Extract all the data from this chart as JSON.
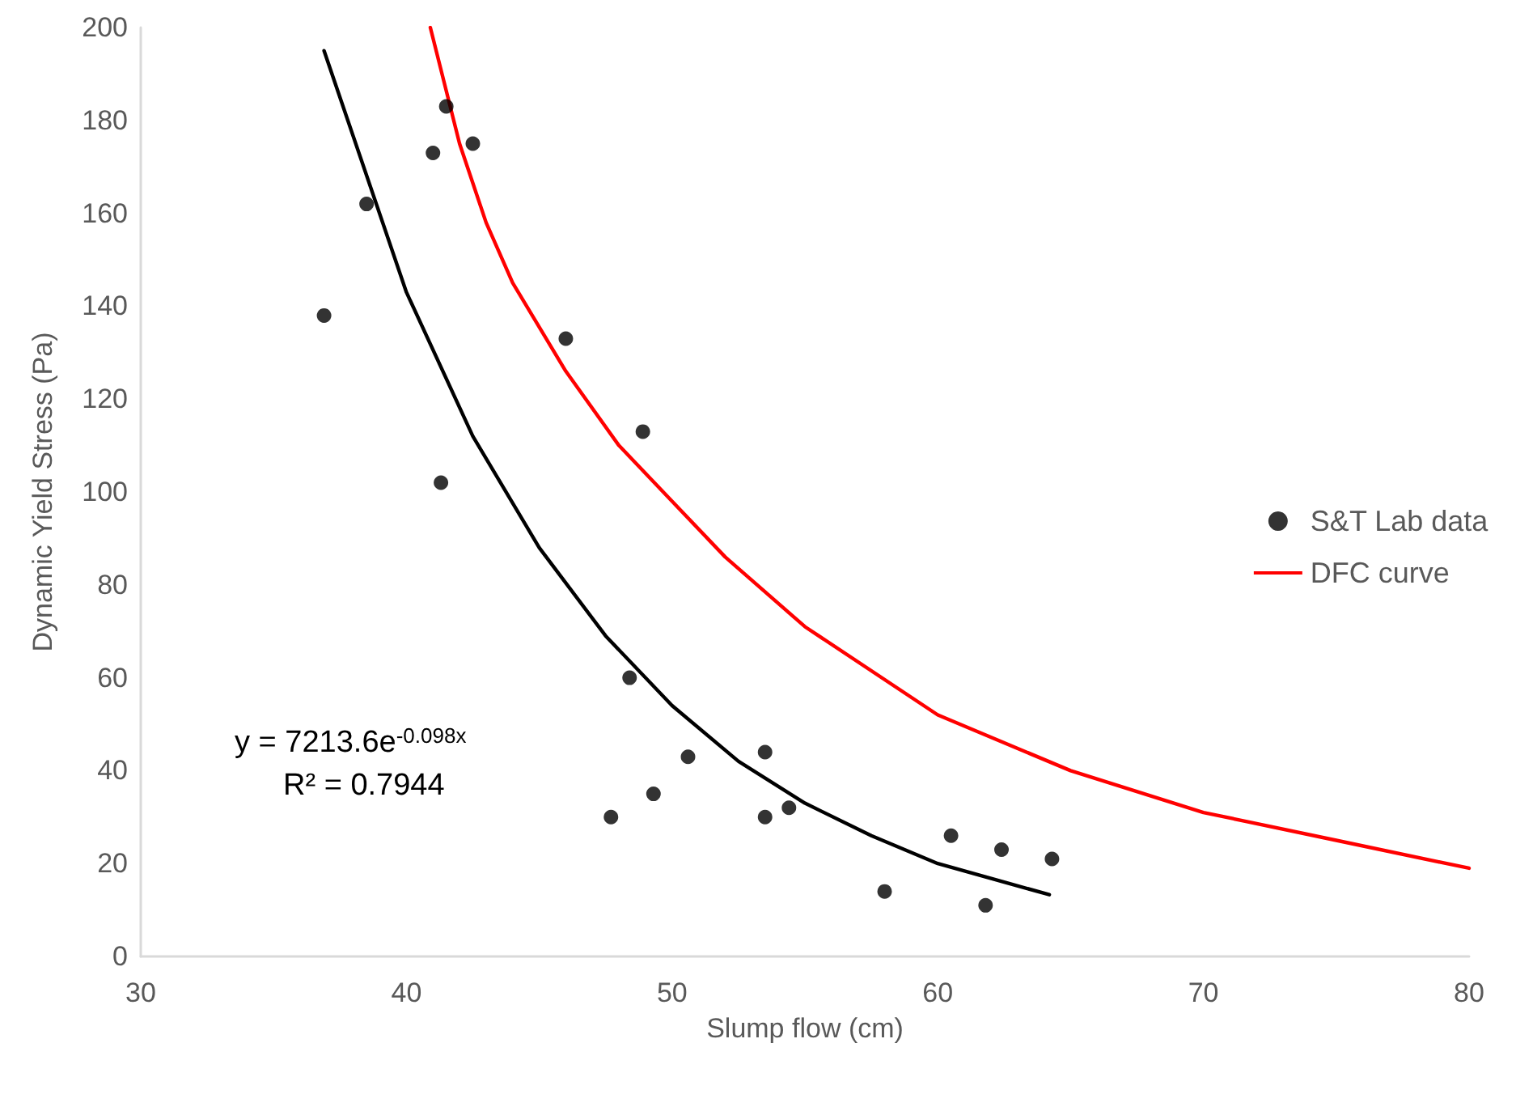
{
  "chart_data": {
    "type": "scatter",
    "xlabel": "Slump flow (cm)",
    "ylabel": "Dynamic Yield Stress (Pa)",
    "xlim": [
      30,
      80
    ],
    "xticks": [
      30,
      40,
      50,
      60,
      70,
      80
    ],
    "ylim": [
      0,
      200
    ],
    "yticks": [
      0,
      20,
      40,
      60,
      80,
      100,
      120,
      140,
      160,
      180,
      200
    ],
    "grid": false,
    "legend": "right",
    "marker": "circle",
    "annotations": [
      "y = 7213.6e$^{-0.098x}$",
      "R² = 0.7944"
    ],
    "series": [
      {
        "name": "S&T Lab data",
        "color": "#000000",
        "x": [
          36.9,
          38.5,
          41.0,
          41.5,
          42.5,
          41.3,
          46.0,
          48.9,
          48.4,
          50.6,
          49.3,
          47.7,
          53.5,
          53.5,
          54.4,
          58.0,
          60.5,
          62.4,
          61.8,
          64.3
        ],
        "values": [
          138,
          162,
          173,
          183,
          175,
          102,
          133,
          113,
          60,
          43,
          35,
          30,
          44,
          30,
          32,
          14,
          26,
          23,
          11,
          21
        ]
      },
      {
        "type": "line",
        "color": "#000000",
        "marker": "none",
        "x": [
          36.9,
          40,
          42.5,
          45,
          47.5,
          50,
          52.5,
          55,
          57.5,
          60,
          62.5,
          64.2
        ],
        "values": [
          195,
          143,
          112,
          88,
          69,
          54,
          42,
          33,
          26,
          20,
          16,
          13.3
        ]
      },
      {
        "name": "DFC curve",
        "type": "line",
        "color": "#ff0000",
        "marker": "none",
        "x": [
          40.9,
          42,
          43,
          44,
          46,
          48,
          50,
          52,
          55,
          60,
          65,
          70,
          75,
          80
        ],
        "values": [
          200,
          175,
          158,
          145,
          126,
          110,
          98,
          86,
          71,
          52,
          40,
          31,
          25,
          19
        ]
      }
    ]
  }
}
